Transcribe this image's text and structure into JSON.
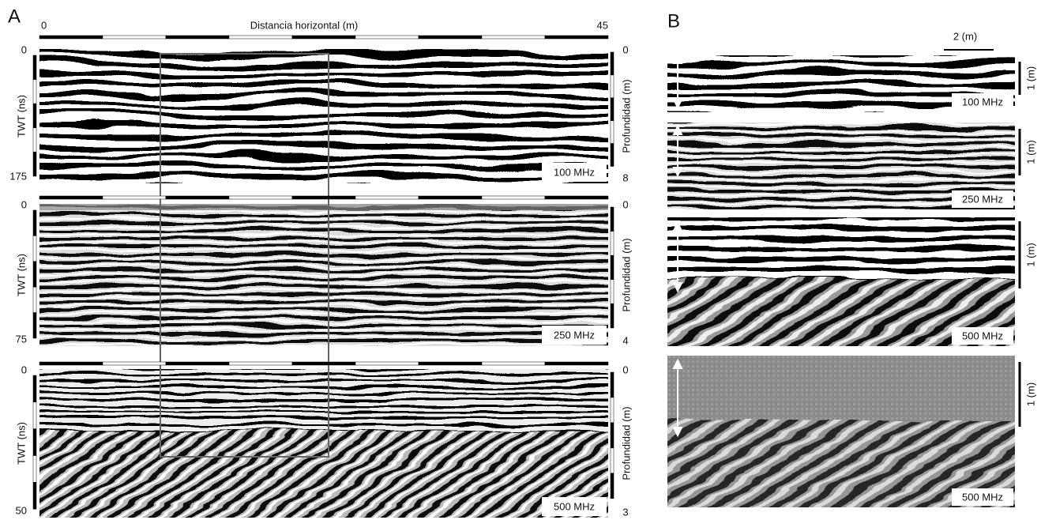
{
  "panel_a": {
    "label": "A",
    "scale": {
      "start": "0",
      "title": "Distancia horizontal (m)",
      "end": "45"
    },
    "radargrams": [
      {
        "twt_label": "TWT (ns)",
        "twt_top": "0",
        "twt_bottom": "175",
        "depth_label": "Profundidad (m)",
        "depth_top": "0",
        "depth_bottom": "8",
        "frequency": "100 MHz"
      },
      {
        "twt_label": "TWT (ns)",
        "twt_top": "0",
        "twt_bottom": "75",
        "depth_label": "Profundidad (m)",
        "depth_top": "0",
        "depth_bottom": "4",
        "frequency": "250 MHz"
      },
      {
        "twt_label": "TWT (ns)",
        "twt_top": "0",
        "twt_bottom": "50",
        "depth_label": "Profundidad (m)",
        "depth_top": "0",
        "depth_bottom": "3",
        "frequency": "500 MHz"
      }
    ]
  },
  "panel_b": {
    "label": "B",
    "scale": "2 (m)",
    "radargrams": [
      {
        "frequency": "100 MHz",
        "depth_scale": "1 (m)"
      },
      {
        "frequency": "250 MHz",
        "depth_scale": "1 (m)"
      },
      {
        "frequency": "500 MHz",
        "depth_scale": "1 (m)"
      },
      {
        "frequency": "500 MHz",
        "depth_scale": "1 (m)"
      }
    ]
  }
}
